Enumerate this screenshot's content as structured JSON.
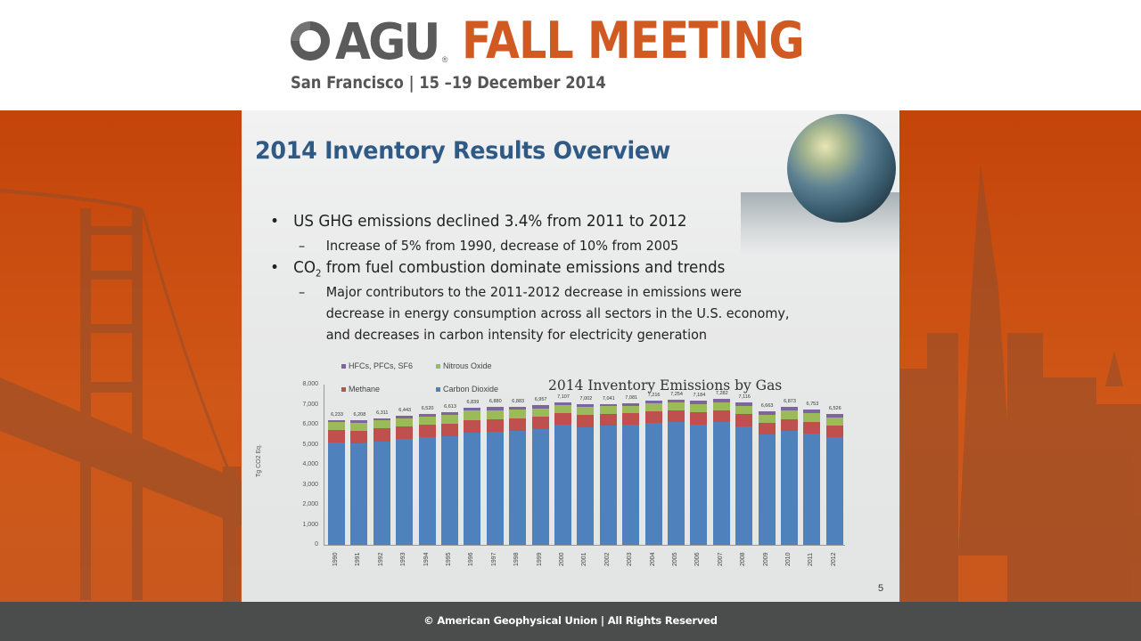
{
  "header": {
    "org": "AGU",
    "registered": "®",
    "event": "FALL MEETING",
    "subtitle": "San Francisco  |  15 –19 December 2014",
    "brand_orange": "#d05a22",
    "brand_gray": "#5b5b5b"
  },
  "slide": {
    "title": "2014 Inventory Results Overview",
    "page_number": "5",
    "bullets": [
      {
        "level": 1,
        "text": "US GHG emissions declined 3.4% from 2011 to 2012"
      },
      {
        "level": 2,
        "text": "Increase of 5% from 1990, decrease of 10% from 2005"
      },
      {
        "level": 1,
        "text_pre": "CO",
        "text_sub": "2",
        "text_post": " from fuel combustion dominate emissions and trends"
      },
      {
        "level": 2,
        "text": "Major contributors to the 2011-2012 decrease in emissions were"
      },
      {
        "level": 2,
        "text": "decrease in energy consumption across all sectors in the U.S. economy,"
      },
      {
        "level": 2,
        "text": "and decreases in carbon intensity for electricity generation"
      }
    ],
    "dash": "–"
  },
  "chart_data": {
    "type": "bar",
    "stacked": true,
    "title": "2014 Inventory Emissions by Gas",
    "xlabel": "",
    "ylabel": "Tg CO2 Eq.",
    "ylim": [
      0,
      8000
    ],
    "yticks": [
      "0",
      "1,000",
      "2,000",
      "3,000",
      "4,000",
      "5,000",
      "6,000",
      "7,000",
      "8,000"
    ],
    "grid": false,
    "legend_position": "top-left",
    "categories": [
      "1990",
      "1991",
      "1992",
      "1993",
      "1994",
      "1995",
      "1996",
      "1997",
      "1998",
      "1999",
      "2000",
      "2001",
      "2002",
      "2003",
      "2004",
      "2005",
      "2006",
      "2007",
      "2008",
      "2009",
      "2010",
      "2011",
      "2012"
    ],
    "totals": [
      6233,
      6208,
      6311,
      6443,
      6520,
      6613,
      6839,
      6880,
      6883,
      6957,
      7107,
      7002,
      7041,
      7081,
      7216,
      7254,
      7184,
      7282,
      7116,
      6663,
      6873,
      6753,
      6526
    ],
    "total_labels": [
      "6,233",
      "6,208",
      "6,311",
      "6,443",
      "6,520",
      "6,613",
      "6,839",
      "6,880",
      "6,883",
      "6,957",
      "7,107",
      "7,002",
      "7,041",
      "7,081",
      "7,216",
      "7,254",
      "7,184",
      "7,282",
      "7,116",
      "6,663",
      "6,873",
      "6,753",
      "6,526"
    ],
    "series": [
      {
        "name": "Carbon Dioxide",
        "color": "#4f81bd",
        "values": [
          5108,
          5061,
          5174,
          5281,
          5360,
          5420,
          5602,
          5663,
          5704,
          5786,
          5979,
          5885,
          5935,
          5981,
          6094,
          6112,
          6022,
          6120,
          5924,
          5501,
          5703,
          5569,
          5383
        ]
      },
      {
        "name": "Methane",
        "color": "#c0504d",
        "values": [
          636,
          638,
          637,
          637,
          637,
          624,
          622,
          615,
          606,
          597,
          599,
          594,
          591,
          592,
          591,
          587,
          592,
          594,
          594,
          584,
          582,
          578,
          567
        ]
      },
      {
        "name": "Nitrous Oxide",
        "color": "#9bbb59",
        "values": [
          398,
          402,
          407,
          413,
          419,
          427,
          493,
          448,
          440,
          425,
          395,
          389,
          386,
          380,
          384,
          405,
          406,
          415,
          425,
          421,
          424,
          413,
          410
        ]
      },
      {
        "name": "HFCs, PFCs, SF6",
        "color": "#8064a2",
        "values": [
          91,
          107,
          93,
          112,
          104,
          142,
          122,
          154,
          133,
          149,
          134,
          134,
          129,
          128,
          147,
          150,
          164,
          153,
          173,
          157,
          164,
          193,
          166
        ]
      }
    ]
  },
  "footer": {
    "text": "© American Geophysical Union | All Rights Reserved"
  }
}
